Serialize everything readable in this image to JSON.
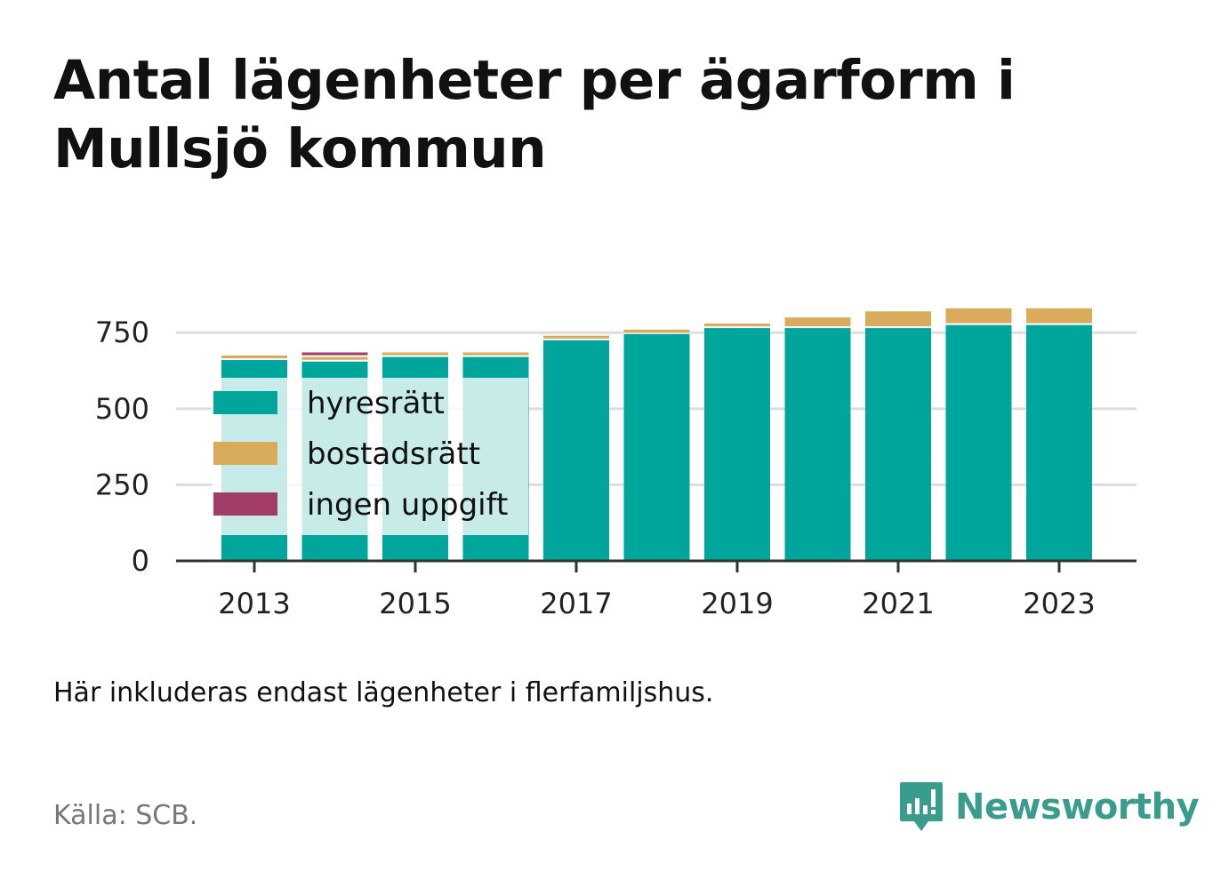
{
  "header": {
    "title": "Antal lägenheter per ägarform i Mullsjö kommun"
  },
  "footer": {
    "note": "Här inkluderas endast lägenheter i flerfamiljshus.",
    "source": "Källa: SCB.",
    "brand": "Newsworthy"
  },
  "colors": {
    "hyresratt": "#00a59b",
    "bostadsratt": "#d9ac5c",
    "ingen_uppgift": "#a23d69",
    "legend_bg": "#c8ebe6",
    "grid": "#dddddd",
    "brand": "#3a9c8d"
  },
  "chart_data": {
    "type": "bar",
    "stacked": true,
    "title": "Antal lägenheter per ägarform i Mullsjö kommun",
    "xlabel": "",
    "ylabel": "",
    "ylim": [
      0,
      850
    ],
    "yticks": [
      0,
      250,
      500,
      750
    ],
    "ytick_labels": [
      "0",
      "250",
      "500",
      "750"
    ],
    "xtick_labels": [
      "2013",
      "2015",
      "2017",
      "2019",
      "2021",
      "2023"
    ],
    "categories": [
      "2013",
      "2014",
      "2015",
      "2016",
      "2017",
      "2018",
      "2019",
      "2020",
      "2021",
      "2022",
      "2023"
    ],
    "grid": true,
    "legend_position": "top-left inside plot",
    "series": [
      {
        "name": "hyresrätt",
        "color": "#00a59b",
        "values": [
          660,
          655,
          670,
          670,
          725,
          745,
          765,
          765,
          765,
          775,
          775
        ]
      },
      {
        "name": "bostadsrätt",
        "color": "#d9ac5c",
        "values": [
          15,
          15,
          15,
          15,
          15,
          15,
          15,
          35,
          55,
          55,
          55
        ]
      },
      {
        "name": "ingen uppgift",
        "color": "#a23d69",
        "values": [
          0,
          15,
          0,
          0,
          0,
          0,
          0,
          0,
          0,
          0,
          0
        ]
      }
    ]
  }
}
